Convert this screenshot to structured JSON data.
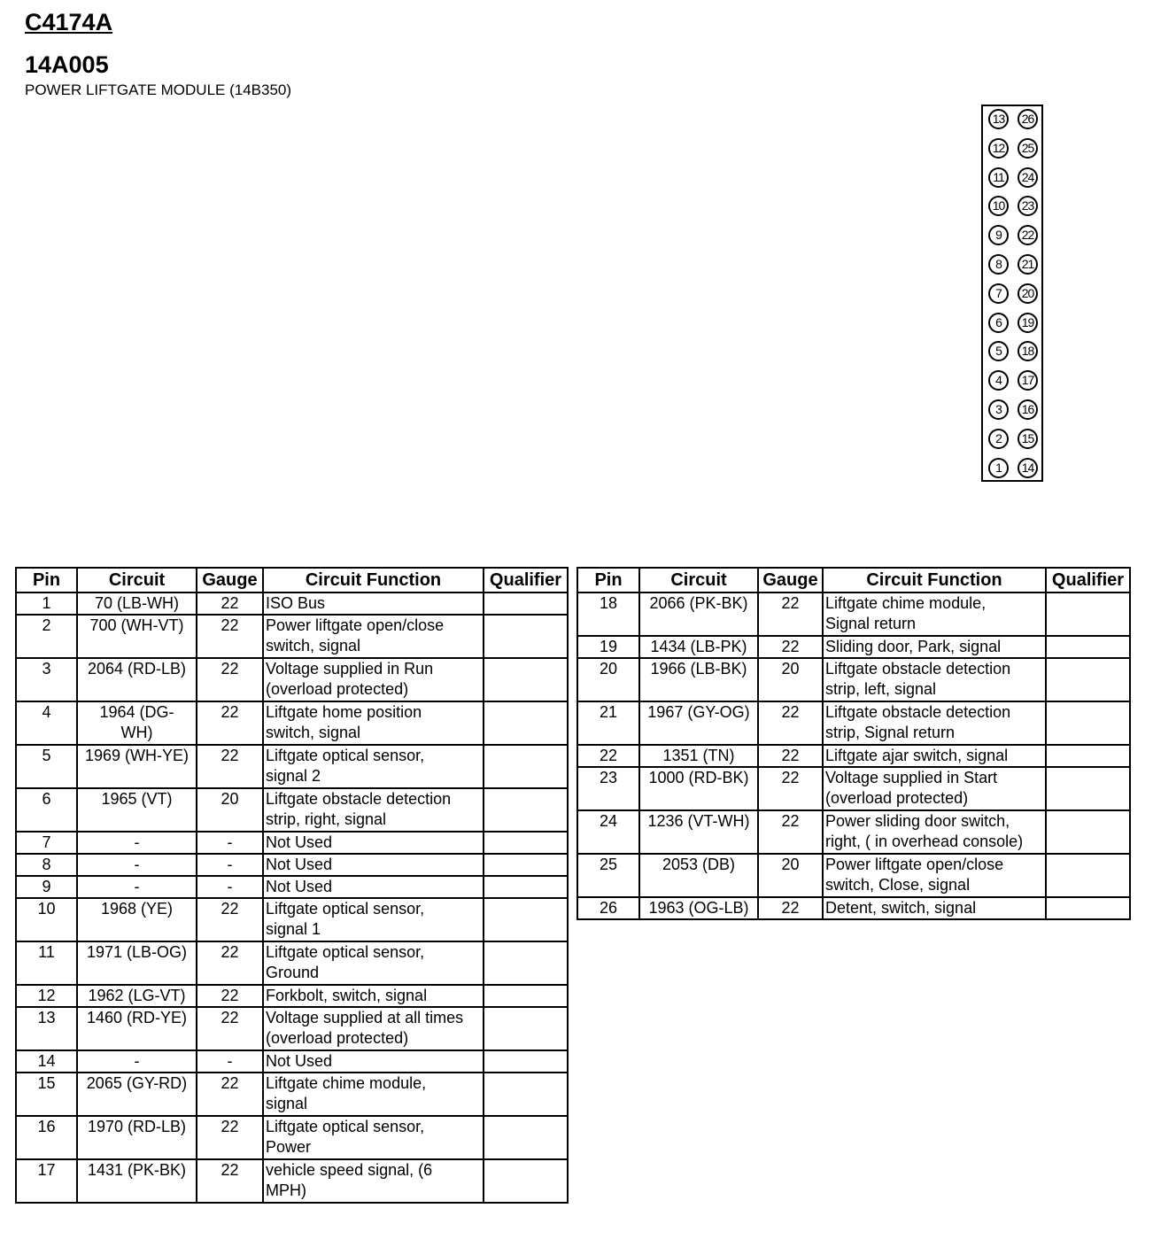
{
  "header": {
    "connector": "C4174A",
    "part": "14A005",
    "module": "POWER LIFTGATE MODULE (14B350)"
  },
  "connector_pins": {
    "left": [
      "13",
      "12",
      "11",
      "10",
      "9",
      "8",
      "7",
      "6",
      "5",
      "4",
      "3",
      "2",
      "1"
    ],
    "right": [
      "26",
      "25",
      "24",
      "23",
      "22",
      "21",
      "20",
      "19",
      "18",
      "17",
      "16",
      "15",
      "14"
    ]
  },
  "columns": [
    "Pin",
    "Circuit",
    "Gauge",
    "Circuit Function",
    "Qualifier"
  ],
  "left_rows": [
    {
      "pin": "1",
      "circuit": "70 (LB-WH)",
      "gauge": "22",
      "function": "ISO Bus",
      "qualifier": ""
    },
    {
      "pin": "2",
      "circuit": "700 (WH-VT)",
      "gauge": "22",
      "function": "Power liftgate open/close\nswitch, signal",
      "qualifier": ""
    },
    {
      "pin": "3",
      "circuit": "2064 (RD-LB)",
      "gauge": "22",
      "function": "Voltage supplied in Run\n(overload protected)",
      "qualifier": ""
    },
    {
      "pin": "4",
      "circuit": "1964 (DG-\nWH)",
      "gauge": "22",
      "function": "Liftgate home position\nswitch, signal",
      "qualifier": ""
    },
    {
      "pin": "5",
      "circuit": "1969 (WH-YE)",
      "gauge": "22",
      "function": "Liftgate optical sensor,\nsignal 2",
      "qualifier": ""
    },
    {
      "pin": "6",
      "circuit": "1965 (VT)",
      "gauge": "20",
      "function": "Liftgate obstacle detection\nstrip, right, signal",
      "qualifier": ""
    },
    {
      "pin": "7",
      "circuit": "-",
      "gauge": "-",
      "function": "Not Used",
      "qualifier": ""
    },
    {
      "pin": "8",
      "circuit": "-",
      "gauge": "-",
      "function": "Not Used",
      "qualifier": ""
    },
    {
      "pin": "9",
      "circuit": "-",
      "gauge": "-",
      "function": "Not Used",
      "qualifier": ""
    },
    {
      "pin": "10",
      "circuit": "1968 (YE)",
      "gauge": "22",
      "function": "Liftgate optical sensor,\nsignal 1",
      "qualifier": ""
    },
    {
      "pin": "11",
      "circuit": "1971 (LB-OG)",
      "gauge": "22",
      "function": "Liftgate optical sensor,\nGround",
      "qualifier": ""
    },
    {
      "pin": "12",
      "circuit": "1962 (LG-VT)",
      "gauge": "22",
      "function": "Forkbolt, switch, signal",
      "qualifier": ""
    },
    {
      "pin": "13",
      "circuit": "1460 (RD-YE)",
      "gauge": "22",
      "function": "Voltage supplied at all times\n(overload protected)",
      "qualifier": ""
    },
    {
      "pin": "14",
      "circuit": "-",
      "gauge": "-",
      "function": "Not Used",
      "qualifier": ""
    },
    {
      "pin": "15",
      "circuit": "2065 (GY-RD)",
      "gauge": "22",
      "function": "Liftgate chime module,\nsignal",
      "qualifier": ""
    },
    {
      "pin": "16",
      "circuit": "1970 (RD-LB)",
      "gauge": "22",
      "function": "Liftgate optical sensor,\nPower",
      "qualifier": ""
    },
    {
      "pin": "17",
      "circuit": "1431 (PK-BK)",
      "gauge": "22",
      "function": "vehicle speed signal, (6\nMPH)",
      "qualifier": ""
    }
  ],
  "right_rows": [
    {
      "pin": "18",
      "circuit": "2066 (PK-BK)",
      "gauge": "22",
      "function": "Liftgate chime module,\nSignal return",
      "qualifier": ""
    },
    {
      "pin": "19",
      "circuit": "1434 (LB-PK)",
      "gauge": "22",
      "function": "Sliding door, Park, signal",
      "qualifier": ""
    },
    {
      "pin": "20",
      "circuit": "1966 (LB-BK)",
      "gauge": "20",
      "function": "Liftgate obstacle detection\nstrip, left, signal",
      "qualifier": ""
    },
    {
      "pin": "21",
      "circuit": "1967 (GY-OG)",
      "gauge": "22",
      "function": "Liftgate obstacle detection\nstrip, Signal return",
      "qualifier": ""
    },
    {
      "pin": "22",
      "circuit": "1351 (TN)",
      "gauge": "22",
      "function": "Liftgate ajar switch, signal",
      "qualifier": ""
    },
    {
      "pin": "23",
      "circuit": "1000 (RD-BK)",
      "gauge": "22",
      "function": "Voltage supplied in Start\n(overload protected)",
      "qualifier": ""
    },
    {
      "pin": "24",
      "circuit": "1236 (VT-WH)",
      "gauge": "22",
      "function": "Power sliding door switch,\nright, ( in overhead console)",
      "qualifier": ""
    },
    {
      "pin": "25",
      "circuit": "2053 (DB)",
      "gauge": "20",
      "function": "Power liftgate open/close\nswitch, Close, signal",
      "qualifier": ""
    },
    {
      "pin": "26",
      "circuit": "1963 (OG-LB)",
      "gauge": "22",
      "function": "Detent, switch, signal",
      "qualifier": ""
    }
  ]
}
